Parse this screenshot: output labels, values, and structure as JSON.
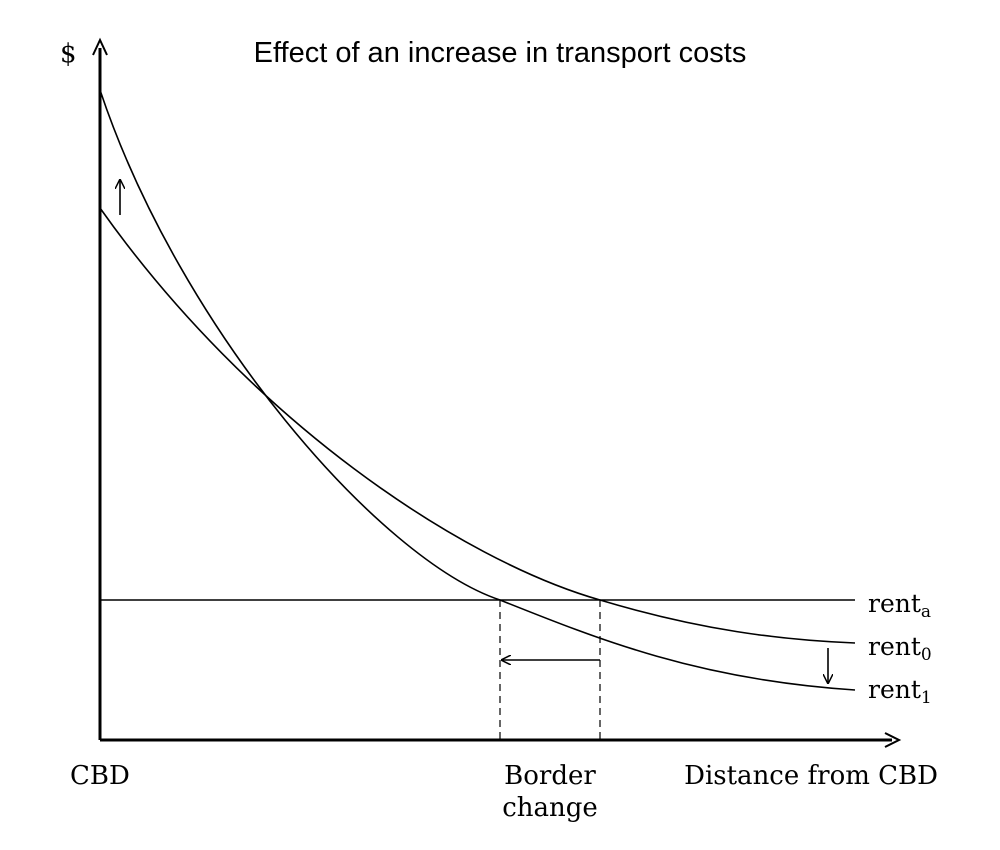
{
  "title": "Effect of an increase in transport costs",
  "y_axis_label": "$",
  "x_axis_label": "Distance from CBD",
  "origin_label": "CBD",
  "border_label_line1": "Border",
  "border_label_line2": "change",
  "curves": {
    "rent_a": {
      "base": "rent",
      "sub": "a"
    },
    "rent_0": {
      "base": "rent",
      "sub": "0"
    },
    "rent_1": {
      "base": "rent",
      "sub": "1"
    }
  },
  "colors": {
    "ink": "#000000",
    "background": "#ffffff"
  }
}
